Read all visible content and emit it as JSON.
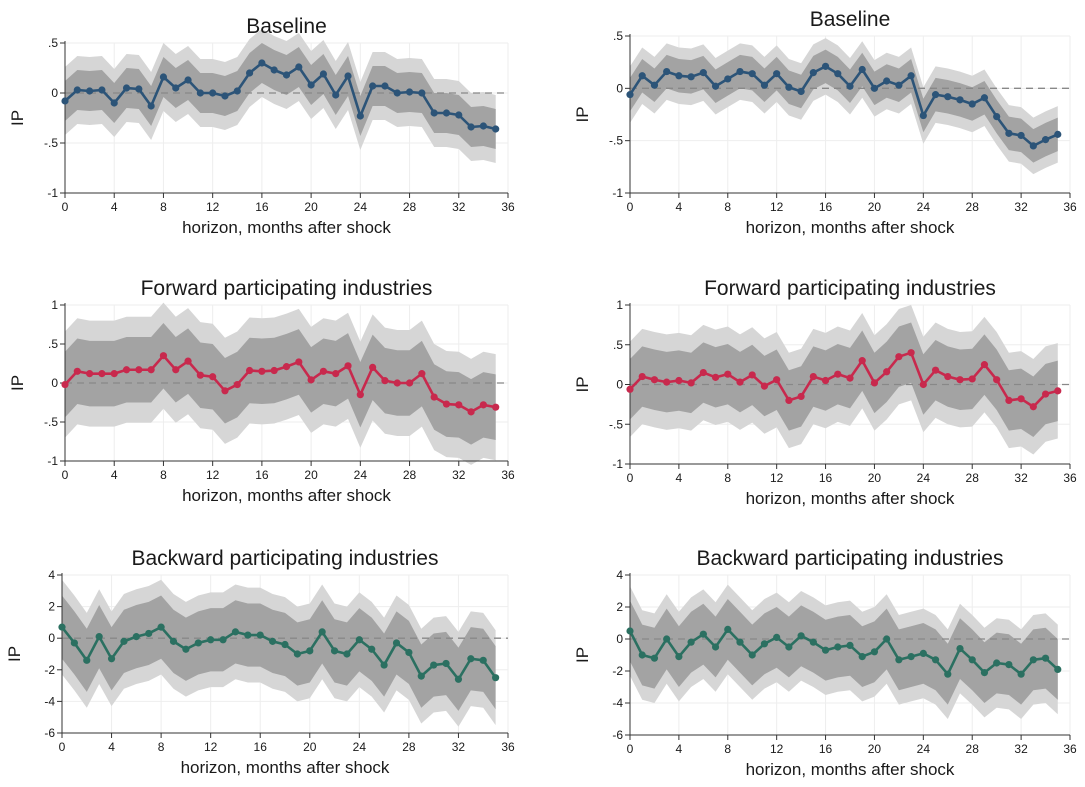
{
  "chart_data": [
    {
      "type": "line",
      "title": "Baseline",
      "xlabel": "horizon, months after shock",
      "ylabel": "IP",
      "xlim": [
        0,
        36
      ],
      "ylim": [
        -1,
        0.5
      ],
      "xticks": [
        0,
        4,
        8,
        12,
        16,
        20,
        24,
        28,
        32,
        36
      ],
      "xtick_labels": [
        "0",
        "4",
        "8",
        "12",
        "16",
        "20",
        "24",
        "28",
        "32",
        "36"
      ],
      "yticks": [
        -1,
        -0.5,
        0,
        0.5
      ],
      "ytick_labels": [
        "-1",
        "-.5",
        "0",
        ".5"
      ],
      "grid": true,
      "zero_line": "dashed",
      "color": "#2c5478",
      "x": [
        0,
        1,
        2,
        3,
        4,
        5,
        6,
        7,
        8,
        9,
        10,
        11,
        12,
        13,
        14,
        15,
        16,
        17,
        18,
        19,
        20,
        21,
        22,
        23,
        24,
        25,
        26,
        27,
        28,
        29,
        30,
        31,
        32,
        33,
        34,
        35
      ],
      "values": [
        -0.08,
        0.03,
        0.02,
        0.03,
        -0.1,
        0.05,
        0.04,
        -0.13,
        0.16,
        0.05,
        0.13,
        0.0,
        0.0,
        -0.03,
        0.02,
        0.2,
        0.3,
        0.23,
        0.18,
        0.26,
        0.08,
        0.19,
        -0.02,
        0.17,
        -0.23,
        0.07,
        0.07,
        0.0,
        0.01,
        0.0,
        -0.2,
        -0.2,
        -0.22,
        -0.34,
        -0.33,
        -0.36
      ],
      "band_inner": 0.2,
      "band_outer": 0.34,
      "band_inner_color": "#a3a3a3",
      "band_outer_color": "#d6d6d6"
    },
    {
      "type": "line",
      "title": "Baseline",
      "xlabel": "horizon, months after shock",
      "ylabel": "IP",
      "xlim": [
        0,
        36
      ],
      "ylim": [
        -1,
        0.5
      ],
      "xticks": [
        0,
        4,
        8,
        12,
        16,
        20,
        24,
        28,
        32,
        36
      ],
      "xtick_labels": [
        "0",
        "4",
        "8",
        "12",
        "16",
        "20",
        "24",
        "28",
        "32",
        "36"
      ],
      "yticks": [
        -1,
        -0.5,
        0,
        0.5
      ],
      "ytick_labels": [
        "-1",
        "-.5",
        "0",
        ".5"
      ],
      "grid": true,
      "zero_line": "dashed",
      "color": "#2c5478",
      "x": [
        0,
        1,
        2,
        3,
        4,
        5,
        6,
        7,
        8,
        9,
        10,
        11,
        12,
        13,
        14,
        15,
        16,
        17,
        18,
        19,
        20,
        21,
        22,
        23,
        24,
        25,
        26,
        27,
        28,
        29,
        30,
        31,
        32,
        33,
        34,
        35
      ],
      "values": [
        -0.06,
        0.12,
        0.03,
        0.16,
        0.12,
        0.11,
        0.15,
        0.02,
        0.09,
        0.16,
        0.14,
        0.03,
        0.14,
        0.01,
        -0.03,
        0.15,
        0.21,
        0.14,
        0.02,
        0.18,
        0.0,
        0.07,
        0.03,
        0.12,
        -0.26,
        -0.06,
        -0.08,
        -0.11,
        -0.15,
        -0.09,
        -0.27,
        -0.43,
        -0.45,
        -0.55,
        -0.49,
        -0.44
      ],
      "band_inner": 0.16,
      "band_outer": 0.27,
      "band_inner_color": "#a3a3a3",
      "band_outer_color": "#d6d6d6"
    },
    {
      "type": "line",
      "title": "Forward participating industries",
      "xlabel": "horizon, months after shock",
      "ylabel": "IP",
      "xlim": [
        0,
        36
      ],
      "ylim": [
        -1,
        1
      ],
      "xticks": [
        0,
        4,
        8,
        12,
        16,
        20,
        24,
        28,
        32,
        36
      ],
      "xtick_labels": [
        "0",
        "4",
        "8",
        "12",
        "16",
        "20",
        "24",
        "28",
        "32",
        "36"
      ],
      "yticks": [
        -1,
        -0.5,
        0,
        0.5,
        1
      ],
      "ytick_labels": [
        "-1",
        "-.5",
        "0",
        ".5",
        "1"
      ],
      "grid": true,
      "zero_line": "dashed",
      "color": "#c8294d",
      "x": [
        0,
        1,
        2,
        3,
        4,
        5,
        6,
        7,
        8,
        9,
        10,
        11,
        12,
        13,
        14,
        15,
        16,
        17,
        18,
        19,
        20,
        21,
        22,
        23,
        24,
        25,
        26,
        27,
        28,
        29,
        30,
        31,
        32,
        33,
        34,
        35
      ],
      "values": [
        -0.02,
        0.15,
        0.12,
        0.12,
        0.12,
        0.17,
        0.17,
        0.17,
        0.35,
        0.17,
        0.28,
        0.1,
        0.08,
        -0.1,
        -0.02,
        0.16,
        0.15,
        0.16,
        0.21,
        0.27,
        0.04,
        0.15,
        0.12,
        0.22,
        -0.15,
        0.2,
        0.03,
        0.0,
        0.0,
        0.12,
        -0.18,
        -0.27,
        -0.28,
        -0.37,
        -0.28,
        -0.31
      ],
      "band_inner": 0.42,
      "band_outer": 0.68,
      "band_inner_color": "#a3a3a3",
      "band_outer_color": "#d6d6d6"
    },
    {
      "type": "line",
      "title": "Forward participating industries",
      "xlabel": "horizon, months after shock",
      "ylabel": "IP",
      "xlim": [
        0,
        36
      ],
      "ylim": [
        -1,
        1
      ],
      "xticks": [
        0,
        4,
        8,
        12,
        16,
        20,
        24,
        28,
        32,
        36
      ],
      "xtick_labels": [
        "0",
        "4",
        "8",
        "12",
        "16",
        "20",
        "24",
        "28",
        "32",
        "36"
      ],
      "yticks": [
        -1,
        -0.5,
        0,
        0.5,
        1
      ],
      "ytick_labels": [
        "-1",
        "-.5",
        "0",
        ".5",
        "1"
      ],
      "grid": true,
      "zero_line": "dashed",
      "color": "#c8294d",
      "x": [
        0,
        1,
        2,
        3,
        4,
        5,
        6,
        7,
        8,
        9,
        10,
        11,
        12,
        13,
        14,
        15,
        16,
        17,
        18,
        19,
        20,
        21,
        22,
        23,
        24,
        25,
        26,
        27,
        28,
        29,
        30,
        31,
        32,
        33,
        34,
        35
      ],
      "values": [
        -0.06,
        0.1,
        0.06,
        0.03,
        0.05,
        0.02,
        0.15,
        0.09,
        0.13,
        0.03,
        0.12,
        -0.02,
        0.06,
        -0.2,
        -0.15,
        0.1,
        0.05,
        0.13,
        0.08,
        0.3,
        0.02,
        0.16,
        0.35,
        0.4,
        0.0,
        0.18,
        0.1,
        0.06,
        0.07,
        0.25,
        0.06,
        -0.2,
        -0.18,
        -0.28,
        -0.12,
        -0.08
      ],
      "band_inner": 0.38,
      "band_outer": 0.6,
      "band_inner_color": "#a3a3a3",
      "band_outer_color": "#d6d6d6"
    },
    {
      "type": "line",
      "title": "Backward participating industries",
      "xlabel": "horizon, months after shock",
      "ylabel": "IP",
      "xlim": [
        0,
        36
      ],
      "ylim": [
        -6,
        4
      ],
      "xticks": [
        0,
        4,
        8,
        12,
        16,
        20,
        24,
        28,
        32,
        36
      ],
      "xtick_labels": [
        "0",
        "4",
        "8",
        "12",
        "16",
        "20",
        "24",
        "28",
        "32",
        "36"
      ],
      "yticks": [
        -6,
        -4,
        -2,
        0,
        2,
        4
      ],
      "ytick_labels": [
        "-6",
        "-4",
        "-2",
        "0",
        "2",
        "4"
      ],
      "grid": true,
      "zero_line": "dashed",
      "color": "#2b7061",
      "x": [
        0,
        1,
        2,
        3,
        4,
        5,
        6,
        7,
        8,
        9,
        10,
        11,
        12,
        13,
        14,
        15,
        16,
        17,
        18,
        19,
        20,
        21,
        22,
        23,
        24,
        25,
        26,
        27,
        28,
        29,
        30,
        31,
        32,
        33,
        34,
        35
      ],
      "values": [
        0.7,
        -0.3,
        -1.4,
        0.1,
        -1.3,
        -0.2,
        0.1,
        0.3,
        0.7,
        -0.2,
        -0.7,
        -0.3,
        -0.1,
        -0.1,
        0.4,
        0.2,
        0.2,
        -0.2,
        -0.4,
        -1.0,
        -0.8,
        0.4,
        -0.8,
        -1.0,
        -0.1,
        -0.7,
        -1.7,
        -0.3,
        -0.9,
        -2.4,
        -1.7,
        -1.6,
        -2.6,
        -1.3,
        -1.4,
        -2.5
      ],
      "band_inner": 2.0,
      "band_outer": 3.0,
      "band_inner_color": "#a3a3a3",
      "band_outer_color": "#d6d6d6"
    },
    {
      "type": "line",
      "title": "Backward participating industries",
      "xlabel": "horizon, months after shock",
      "ylabel": "IP",
      "xlim": [
        0,
        36
      ],
      "ylim": [
        -6,
        4
      ],
      "xticks": [
        0,
        4,
        8,
        12,
        16,
        20,
        24,
        28,
        32,
        36
      ],
      "xtick_labels": [
        "0",
        "4",
        "8",
        "12",
        "16",
        "20",
        "24",
        "28",
        "32",
        "36"
      ],
      "yticks": [
        -6,
        -4,
        -2,
        0,
        2,
        4
      ],
      "ytick_labels": [
        "-6",
        "-4",
        "-2",
        "0",
        "2",
        "4"
      ],
      "grid": true,
      "zero_line": "dashed",
      "color": "#2b7061",
      "x": [
        0,
        1,
        2,
        3,
        4,
        5,
        6,
        7,
        8,
        9,
        10,
        11,
        12,
        13,
        14,
        15,
        16,
        17,
        18,
        19,
        20,
        21,
        22,
        23,
        24,
        25,
        26,
        27,
        28,
        29,
        30,
        31,
        32,
        33,
        34,
        35
      ],
      "values": [
        0.5,
        -1.0,
        -1.2,
        0.0,
        -1.1,
        -0.2,
        0.3,
        -0.5,
        0.6,
        -0.2,
        -1.0,
        -0.3,
        0.1,
        -0.5,
        0.2,
        -0.2,
        -0.7,
        -0.5,
        -0.4,
        -1.1,
        -0.8,
        0.0,
        -1.3,
        -1.1,
        -0.9,
        -1.3,
        -2.2,
        -0.6,
        -1.3,
        -2.1,
        -1.5,
        -1.6,
        -2.2,
        -1.3,
        -1.2,
        -1.9
      ],
      "band_inner": 1.9,
      "band_outer": 2.8,
      "band_inner_color": "#a3a3a3",
      "band_outer_color": "#d6d6d6"
    }
  ]
}
